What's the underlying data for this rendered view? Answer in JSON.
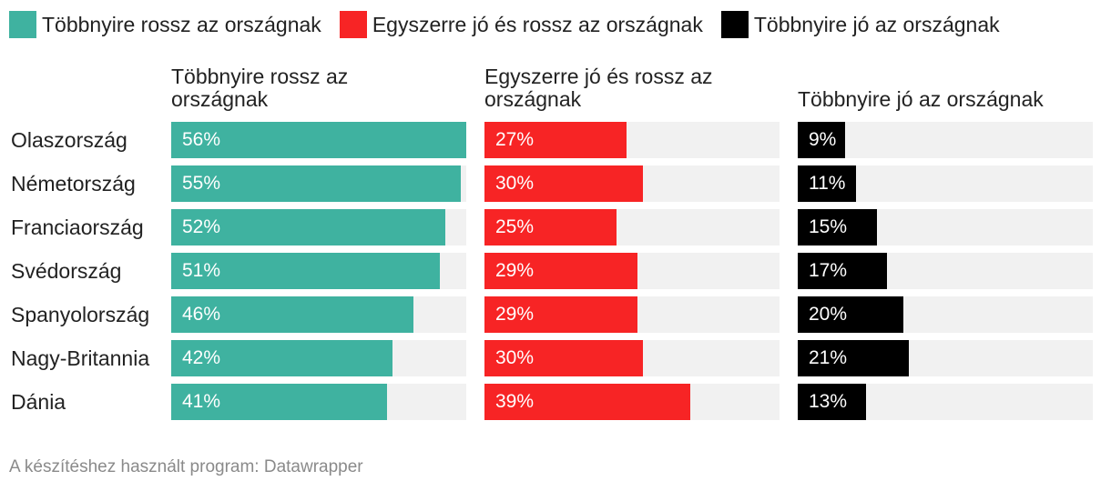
{
  "chart_data": {
    "type": "bar",
    "legend_position": "top-left",
    "categories": [
      "Olaszország",
      "Németország",
      "Franciaország",
      "Svédország",
      "Spanyolország",
      "Nagy-Britannia",
      "Dánia"
    ],
    "series": [
      {
        "name": "Többnyire rossz az országnak",
        "color": "#3fb2a0",
        "values": [
          56,
          55,
          52,
          51,
          46,
          42,
          41
        ],
        "labels": [
          "56%",
          "55%",
          "52%",
          "51%",
          "46%",
          "42%",
          "41%"
        ]
      },
      {
        "name": "Egyszerre jó és rossz az országnak",
        "color": "#f72425",
        "values": [
          27,
          30,
          25,
          29,
          29,
          30,
          39
        ],
        "labels": [
          "27%",
          "30%",
          "25%",
          "29%",
          "29%",
          "30%",
          "39%"
        ]
      },
      {
        "name": "Többnyire jó az országnak",
        "color": "#000000",
        "values": [
          9,
          11,
          15,
          17,
          20,
          21,
          13
        ],
        "labels": [
          "9%",
          "11%",
          "15%",
          "17%",
          "20%",
          "21%",
          "13%"
        ]
      }
    ],
    "xlim": [
      0,
      56
    ]
  },
  "legend": [
    {
      "label": "Többnyire rossz az országnak",
      "color": "#3fb2a0"
    },
    {
      "label": "Egyszerre jó és rossz az országnak",
      "color": "#f72425"
    },
    {
      "label": "Többnyire jó az országnak",
      "color": "#000000"
    }
  ],
  "panels": [
    {
      "title": "Többnyire rossz az országnak"
    },
    {
      "title": "Egyszerre jó és rossz az országnak"
    },
    {
      "title": "Többnyire jó az országnak"
    }
  ],
  "footer": "A készítéshez használt program: Datawrapper"
}
